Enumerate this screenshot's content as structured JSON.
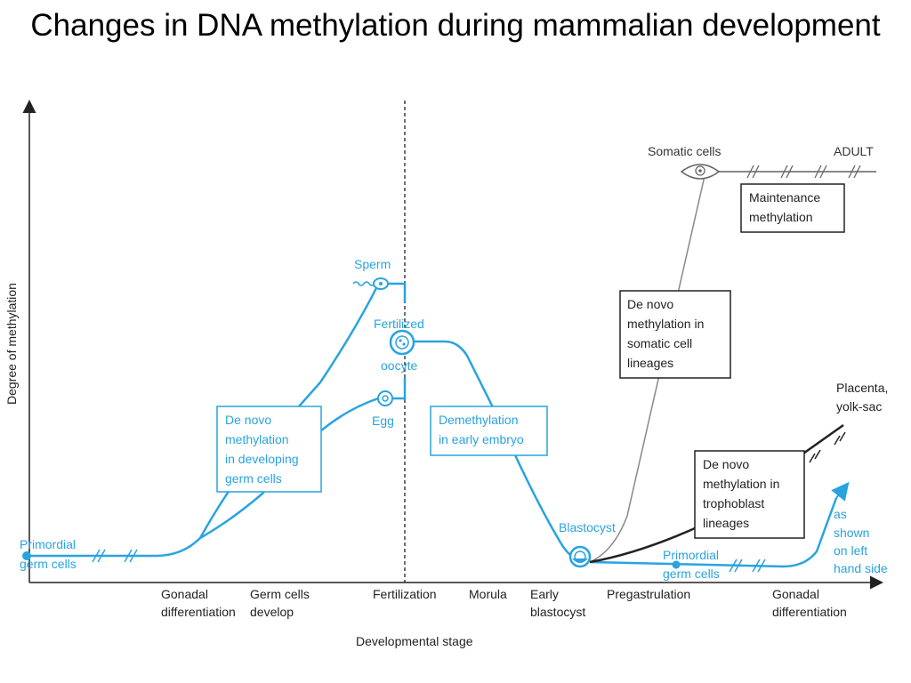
{
  "title": "Changes in DNA methylation during mammalian development",
  "axes": {
    "y_label": "Degree of methylation",
    "x_label": "Developmental stage"
  },
  "stages": [
    "Gonadal",
    "differentiation",
    "Germ cells",
    "develop",
    "Fertilization",
    "Morula",
    "Early",
    "blastocyst",
    "Pregastrulation",
    "Gonadal",
    "differentiation"
  ],
  "nodes": {
    "primordial_left": [
      "Primordial",
      "germ cells"
    ],
    "sperm": "Sperm",
    "egg": "Egg",
    "fertilized_oocyte": [
      "Fertilized",
      "oocyte"
    ],
    "blastocyst": "Blastocyst",
    "primordial_right": [
      "Primordial",
      "germ cells"
    ],
    "somatic_cells": "Somatic cells",
    "adult": "ADULT",
    "placenta": [
      "Placenta,",
      "yolk-sac"
    ],
    "as_shown": [
      "as",
      "shown",
      "on left",
      "hand side"
    ]
  },
  "boxes": {
    "de_novo_germ": [
      "De novo",
      "methylation",
      "in developing",
      "germ cells"
    ],
    "demethylation": [
      "Demethylation",
      "in early embryo"
    ],
    "maintenance": [
      "Maintenance",
      "methylation"
    ],
    "de_novo_somatic": [
      "De novo",
      "methylation in",
      "somatic cell",
      "lineages"
    ],
    "de_novo_trophoblast": [
      "De novo",
      "methylation in",
      "trophoblast",
      "lineages"
    ]
  },
  "colors": {
    "blue": "#29a3e0",
    "black": "#222222",
    "grey": "#888888"
  }
}
